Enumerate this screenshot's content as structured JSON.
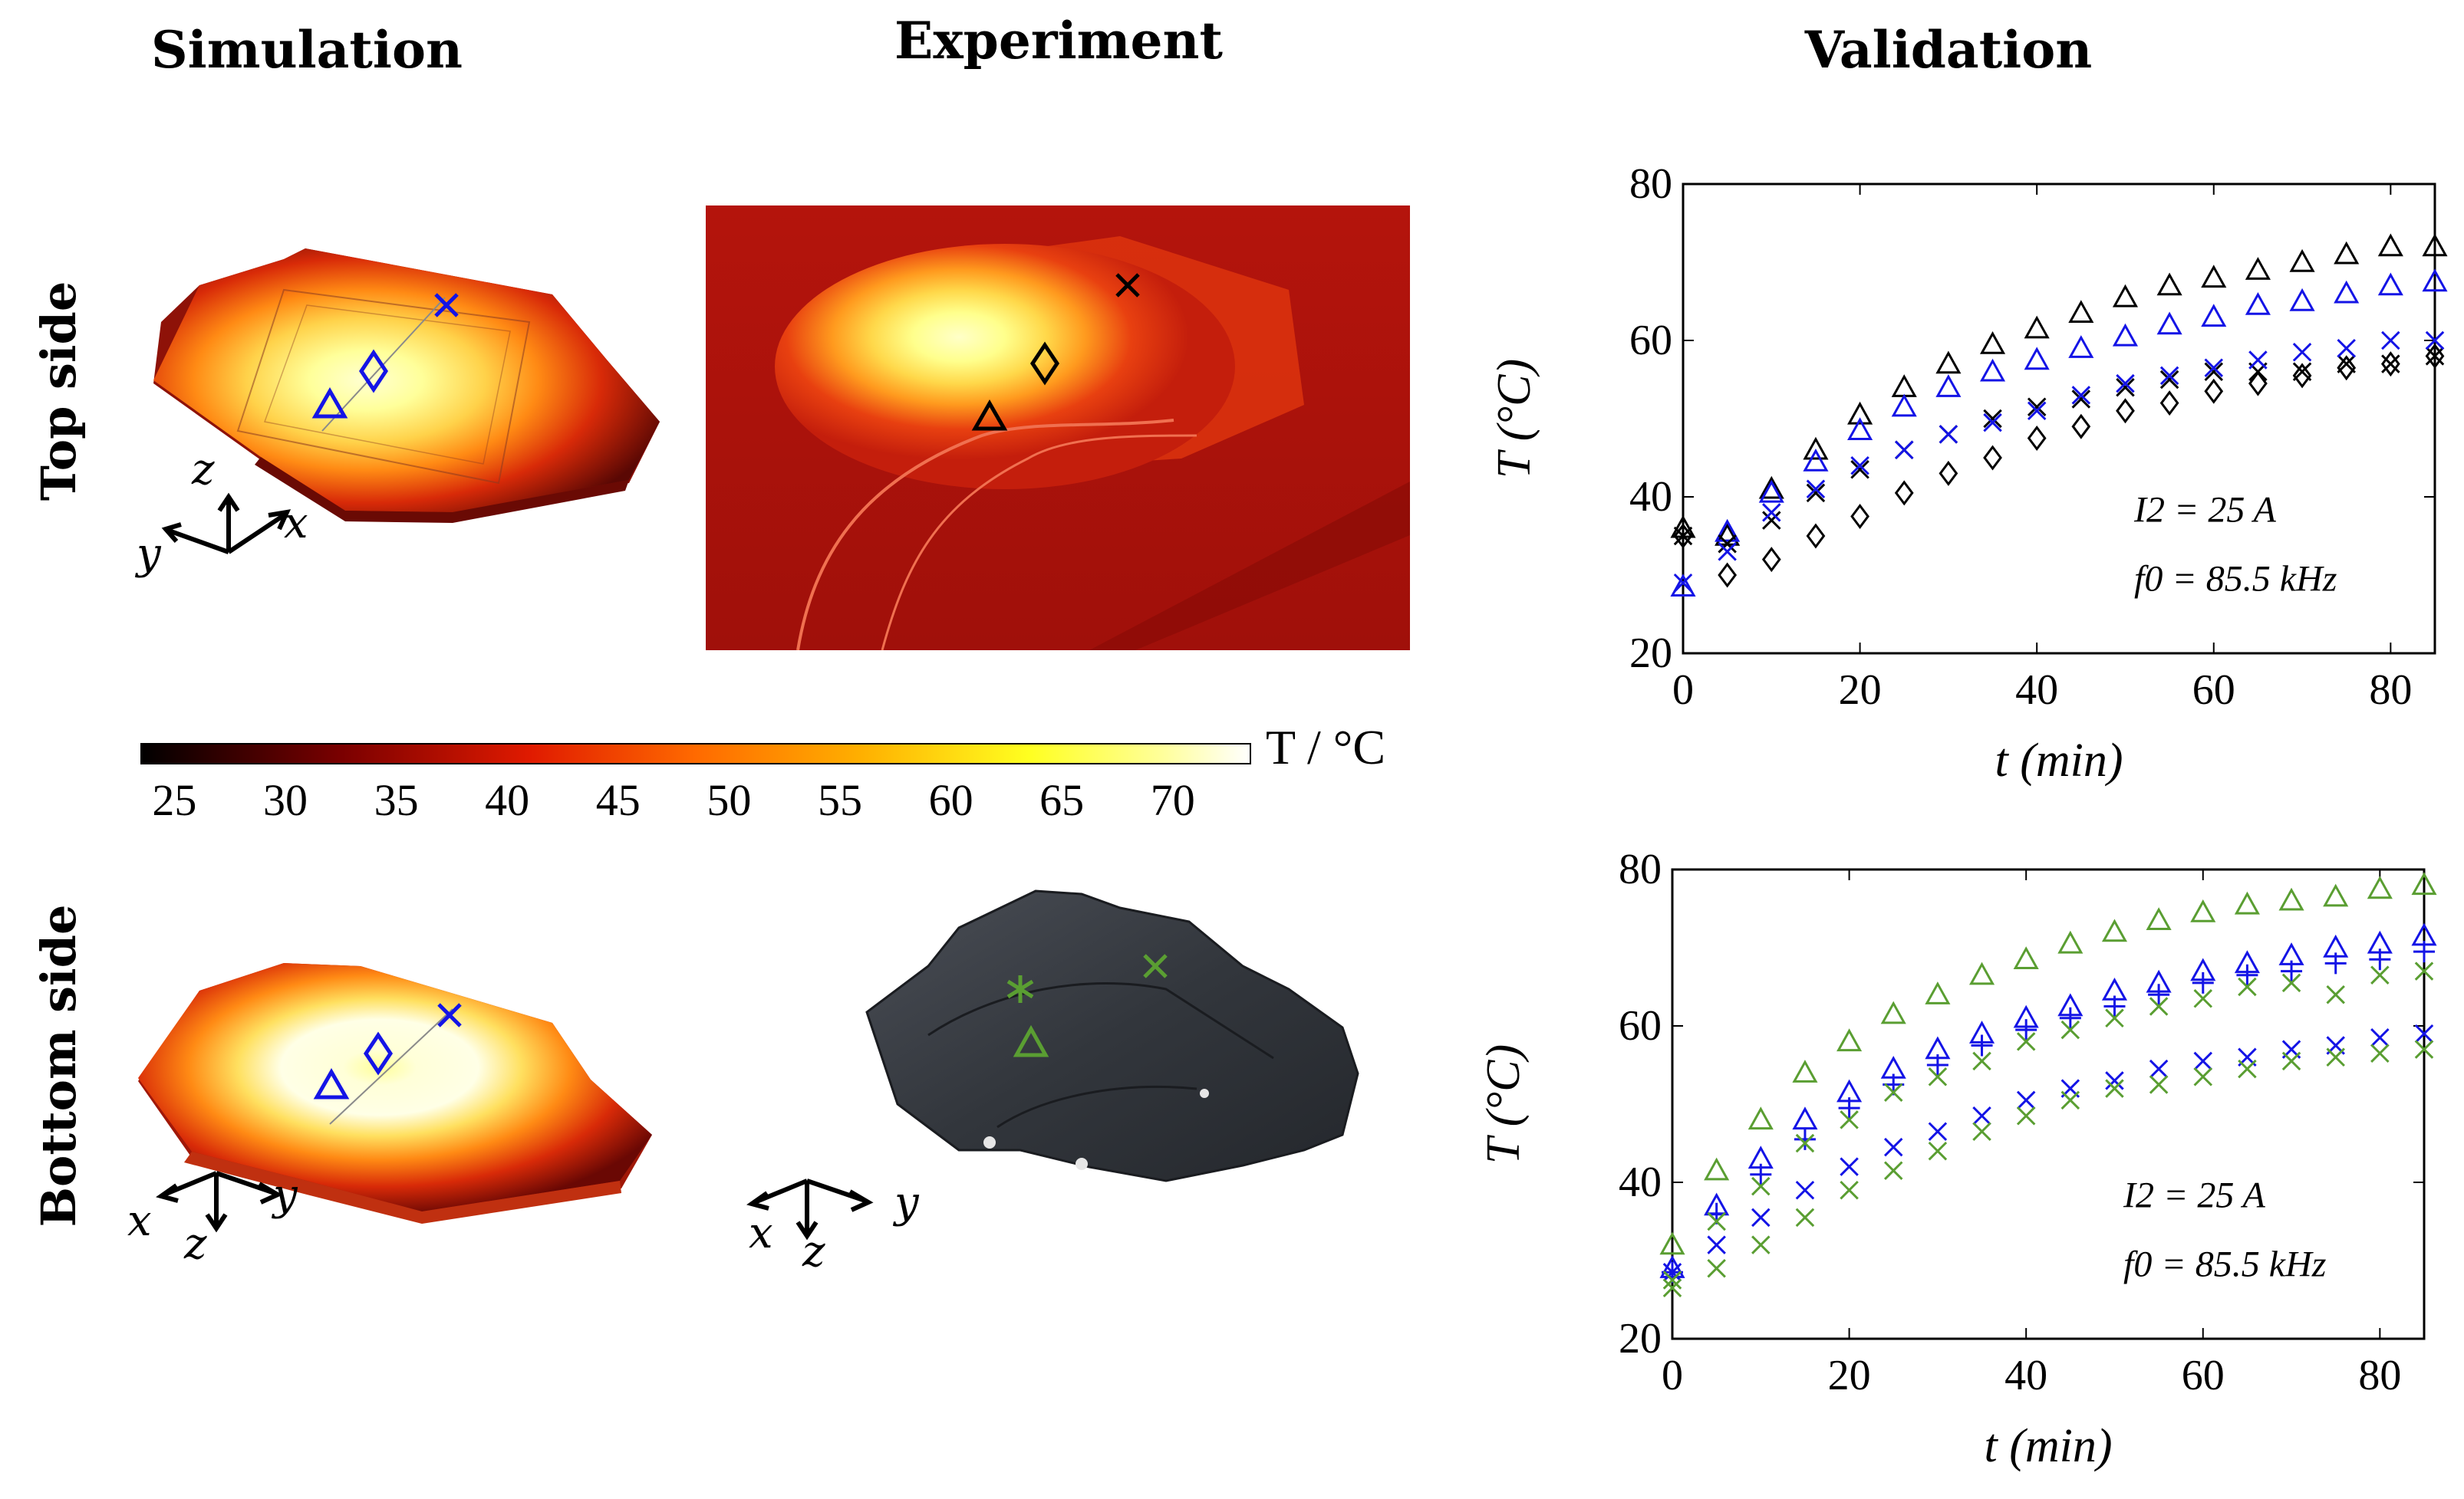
{
  "column_titles": {
    "simulation": "Simulation",
    "experiment": "Experiment",
    "validation": "Validation"
  },
  "row_titles": {
    "top": "Top side",
    "bottom": "Bottom side"
  },
  "axis_triads": {
    "top_sim": {
      "a": "z",
      "b": "y",
      "c": "x"
    },
    "bottom_sim": {
      "a": "x",
      "b": "z",
      "c": "y"
    },
    "bottom_exp": {
      "a": "x",
      "b": "z",
      "c": "y"
    }
  },
  "colorbar": {
    "title": "T / °C",
    "ticks": [
      "25",
      "30",
      "35",
      "40",
      "45",
      "50",
      "55",
      "60",
      "65",
      "70"
    ],
    "range": [
      23.5,
      73.5
    ],
    "colormap": "black-red-yellow-white"
  },
  "colors": {
    "black": "#000000",
    "blue": "#1414e6",
    "green": "#5a9e32"
  },
  "chart_data": [
    {
      "type": "scatter",
      "panel": "top",
      "xlabel": "t (min)",
      "ylabel": "T (°C)",
      "xlim": [
        0,
        85
      ],
      "ylim": [
        20,
        80
      ],
      "xticks": [
        "0",
        "20",
        "40",
        "60",
        "80"
      ],
      "yticks": [
        "20",
        "40",
        "60",
        "80"
      ],
      "annotation": [
        "I2 = 25 A",
        "f0 = 85.5 kHz"
      ],
      "x": [
        0,
        5,
        10,
        15,
        20,
        25,
        30,
        35,
        40,
        45,
        50,
        55,
        60,
        65,
        70,
        75,
        80,
        85
      ],
      "series": [
        {
          "marker": "triangle",
          "color": "#000000",
          "values": [
            36,
            35,
            41,
            46,
            50.5,
            54,
            57,
            59.5,
            61.5,
            63.5,
            65.5,
            67,
            68,
            69,
            70,
            71,
            72,
            72
          ]
        },
        {
          "marker": "triangle",
          "color": "#1414e6",
          "values": [
            28.5,
            35.5,
            40.5,
            44.5,
            48.5,
            51.5,
            54,
            56,
            57.5,
            59,
            60.5,
            62,
            63,
            64.5,
            65,
            66,
            67,
            67.5
          ]
        },
        {
          "marker": "x",
          "color": "#000000",
          "values": [
            35,
            34,
            37,
            40.5,
            43.5,
            46,
            48,
            50,
            51.5,
            52.5,
            54,
            55,
            56,
            56,
            56,
            57,
            57,
            58
          ]
        },
        {
          "marker": "x",
          "color": "#1414e6",
          "values": [
            29,
            33,
            38,
            41,
            44,
            46,
            48,
            49.5,
            51,
            53,
            54.5,
            55.5,
            56.5,
            57.5,
            58.5,
            59,
            60,
            60
          ]
        },
        {
          "marker": "diamond",
          "color": "#000000",
          "values": [
            35,
            30,
            32,
            35,
            37.5,
            40.5,
            43,
            45,
            47.5,
            49,
            51,
            52,
            53.5,
            54.5,
            55.5,
            56.5,
            57,
            58
          ]
        }
      ]
    },
    {
      "type": "scatter",
      "panel": "bottom",
      "xlabel": "t (min)",
      "ylabel": "T (°C)",
      "xlim": [
        0,
        85
      ],
      "ylim": [
        20,
        80
      ],
      "xticks": [
        "0",
        "20",
        "40",
        "60",
        "80"
      ],
      "yticks": [
        "20",
        "40",
        "60",
        "80"
      ],
      "annotation": [
        "I2 = 25 A",
        "f0 = 85.5 kHz"
      ],
      "x": [
        0,
        5,
        10,
        15,
        20,
        25,
        30,
        35,
        40,
        45,
        50,
        55,
        60,
        65,
        70,
        75,
        80,
        85
      ],
      "series": [
        {
          "marker": "triangle",
          "color": "#5a9e32",
          "values": [
            32,
            41.5,
            48,
            54,
            58,
            61.5,
            64,
            66.5,
            68.5,
            70.5,
            72,
            73.5,
            74.5,
            75.5,
            76,
            76.5,
            77.5,
            78
          ]
        },
        {
          "marker": "triangle",
          "color": "#1414e6",
          "values": [
            29,
            37,
            43,
            48,
            51.5,
            54.5,
            57,
            59,
            61,
            62.5,
            64.5,
            65.5,
            67,
            68,
            69,
            70,
            70.5,
            71.5
          ]
        },
        {
          "marker": "plus",
          "color": "#1414e6",
          "values": [
            28.5,
            36,
            41,
            45.5,
            49.5,
            52.5,
            55,
            57.5,
            59.5,
            61,
            62.5,
            64,
            65.5,
            66.5,
            67,
            68,
            68.5,
            69.5
          ]
        },
        {
          "marker": "x",
          "color": "#1414e6",
          "values": [
            28.5,
            32,
            35.5,
            39,
            42,
            44.5,
            46.5,
            48.5,
            50.5,
            52,
            53,
            54.5,
            55.5,
            56,
            57,
            57.5,
            58.5,
            59
          ]
        },
        {
          "marker": "x",
          "color": "#5a9e32",
          "values": [
            26.5,
            29,
            32,
            35.5,
            39,
            41.5,
            44,
            46.5,
            48.5,
            50.5,
            52,
            52.5,
            53.5,
            54.5,
            55.5,
            56,
            56.5,
            57
          ]
        },
        {
          "marker": "x",
          "color": "#5a9e32",
          "values": [
            27.5,
            35,
            39.5,
            45,
            48,
            51.5,
            53.5,
            55.5,
            58,
            59.5,
            61,
            62.5,
            63.5,
            65,
            65.5,
            64,
            66.5,
            67
          ]
        }
      ]
    }
  ]
}
